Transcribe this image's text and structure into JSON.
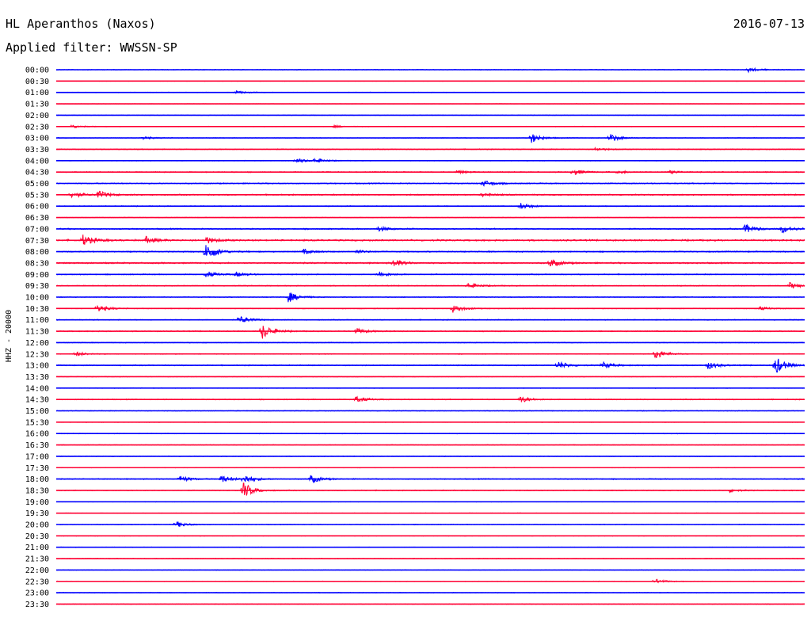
{
  "header": {
    "station": "HL Aperanthos (Naxos)",
    "date": "2016-07-13",
    "filter": "Applied filter: WWSSN-SP"
  },
  "chart_data": {
    "type": "line",
    "title": "HL Aperanthos (Naxos)",
    "ylabel": "HHZ - 20000",
    "trace_colors": [
      "#0000ff",
      "#ff0033"
    ],
    "times": [
      "00:00",
      "00:30",
      "01:00",
      "01:30",
      "02:00",
      "02:30",
      "03:00",
      "03:30",
      "04:00",
      "04:30",
      "05:00",
      "05:30",
      "06:00",
      "06:30",
      "07:00",
      "07:30",
      "08:00",
      "08:30",
      "09:00",
      "09:30",
      "10:00",
      "10:30",
      "11:00",
      "11:30",
      "12:00",
      "12:30",
      "13:00",
      "13:30",
      "14:00",
      "14:30",
      "15:00",
      "15:30",
      "16:00",
      "16:30",
      "17:00",
      "17:30",
      "18:00",
      "18:30",
      "19:00",
      "19:30",
      "20:00",
      "20:30",
      "21:00",
      "21:30",
      "22:00",
      "22:30",
      "23:00",
      "23:30"
    ],
    "noise": [
      0.35,
      0.25,
      0.3,
      0.2,
      0.3,
      0.3,
      0.35,
      0.45,
      0.35,
      0.5,
      0.55,
      0.6,
      0.45,
      0.3,
      0.6,
      0.8,
      0.6,
      0.7,
      0.5,
      0.45,
      0.4,
      0.4,
      0.45,
      0.5,
      0.4,
      0.4,
      0.5,
      0.3,
      0.35,
      0.45,
      0.35,
      0.3,
      0.35,
      0.35,
      0.35,
      0.3,
      0.5,
      0.45,
      0.3,
      0.3,
      0.35,
      0.3,
      0.3,
      0.35,
      0.3,
      0.3,
      0.35,
      0.3
    ],
    "events": [
      {
        "row": 0,
        "x": 0.925,
        "amp": 3
      },
      {
        "row": 2,
        "x": 0.24,
        "amp": 2
      },
      {
        "row": 5,
        "x": 0.02,
        "amp": 2
      },
      {
        "row": 5,
        "x": 0.37,
        "amp": 1.5
      },
      {
        "row": 6,
        "x": 0.115,
        "amp": 2
      },
      {
        "row": 6,
        "x": 0.635,
        "amp": 6
      },
      {
        "row": 6,
        "x": 0.74,
        "amp": 5
      },
      {
        "row": 7,
        "x": 0.72,
        "amp": 2
      },
      {
        "row": 8,
        "x": 0.32,
        "amp": 3
      },
      {
        "row": 8,
        "x": 0.345,
        "amp": 3
      },
      {
        "row": 9,
        "x": 0.535,
        "amp": 2
      },
      {
        "row": 9,
        "x": 0.69,
        "amp": 4
      },
      {
        "row": 9,
        "x": 0.75,
        "amp": 2
      },
      {
        "row": 9,
        "x": 0.82,
        "amp": 2
      },
      {
        "row": 10,
        "x": 0.57,
        "amp": 4
      },
      {
        "row": 11,
        "x": 0.02,
        "amp": 4
      },
      {
        "row": 11,
        "x": 0.055,
        "amp": 5
      },
      {
        "row": 11,
        "x": 0.57,
        "amp": 2
      },
      {
        "row": 12,
        "x": 0.62,
        "amp": 4
      },
      {
        "row": 14,
        "x": 0.43,
        "amp": 3
      },
      {
        "row": 14,
        "x": 0.92,
        "amp": 6
      },
      {
        "row": 14,
        "x": 0.97,
        "amp": 5
      },
      {
        "row": 15,
        "x": 0.035,
        "amp": 7
      },
      {
        "row": 15,
        "x": 0.12,
        "amp": 4
      },
      {
        "row": 15,
        "x": 0.2,
        "amp": 4
      },
      {
        "row": 16,
        "x": 0.2,
        "amp": 12
      },
      {
        "row": 16,
        "x": 0.33,
        "amp": 3
      },
      {
        "row": 16,
        "x": 0.4,
        "amp": 2
      },
      {
        "row": 17,
        "x": 0.45,
        "amp": 5
      },
      {
        "row": 17,
        "x": 0.66,
        "amp": 5
      },
      {
        "row": 18,
        "x": 0.2,
        "amp": 4
      },
      {
        "row": 18,
        "x": 0.24,
        "amp": 3
      },
      {
        "row": 18,
        "x": 0.43,
        "amp": 4
      },
      {
        "row": 19,
        "x": 0.55,
        "amp": 4
      },
      {
        "row": 19,
        "x": 0.98,
        "amp": 4
      },
      {
        "row": 20,
        "x": 0.31,
        "amp": 7
      },
      {
        "row": 21,
        "x": 0.055,
        "amp": 5
      },
      {
        "row": 21,
        "x": 0.53,
        "amp": 5
      },
      {
        "row": 21,
        "x": 0.94,
        "amp": 2
      },
      {
        "row": 22,
        "x": 0.245,
        "amp": 5
      },
      {
        "row": 23,
        "x": 0.275,
        "amp": 10
      },
      {
        "row": 23,
        "x": 0.4,
        "amp": 4
      },
      {
        "row": 25,
        "x": 0.025,
        "amp": 3
      },
      {
        "row": 25,
        "x": 0.8,
        "amp": 7
      },
      {
        "row": 26,
        "x": 0.67,
        "amp": 5
      },
      {
        "row": 26,
        "x": 0.73,
        "amp": 4
      },
      {
        "row": 26,
        "x": 0.87,
        "amp": 5
      },
      {
        "row": 26,
        "x": 0.96,
        "amp": 12
      },
      {
        "row": 29,
        "x": 0.4,
        "amp": 4
      },
      {
        "row": 29,
        "x": 0.62,
        "amp": 4
      },
      {
        "row": 36,
        "x": 0.165,
        "amp": 4
      },
      {
        "row": 36,
        "x": 0.22,
        "amp": 5
      },
      {
        "row": 36,
        "x": 0.25,
        "amp": 6
      },
      {
        "row": 36,
        "x": 0.34,
        "amp": 5
      },
      {
        "row": 37,
        "x": 0.25,
        "amp": 10
      },
      {
        "row": 37,
        "x": 0.9,
        "amp": 2
      },
      {
        "row": 40,
        "x": 0.16,
        "amp": 4
      },
      {
        "row": 45,
        "x": 0.8,
        "amp": 3
      }
    ]
  }
}
